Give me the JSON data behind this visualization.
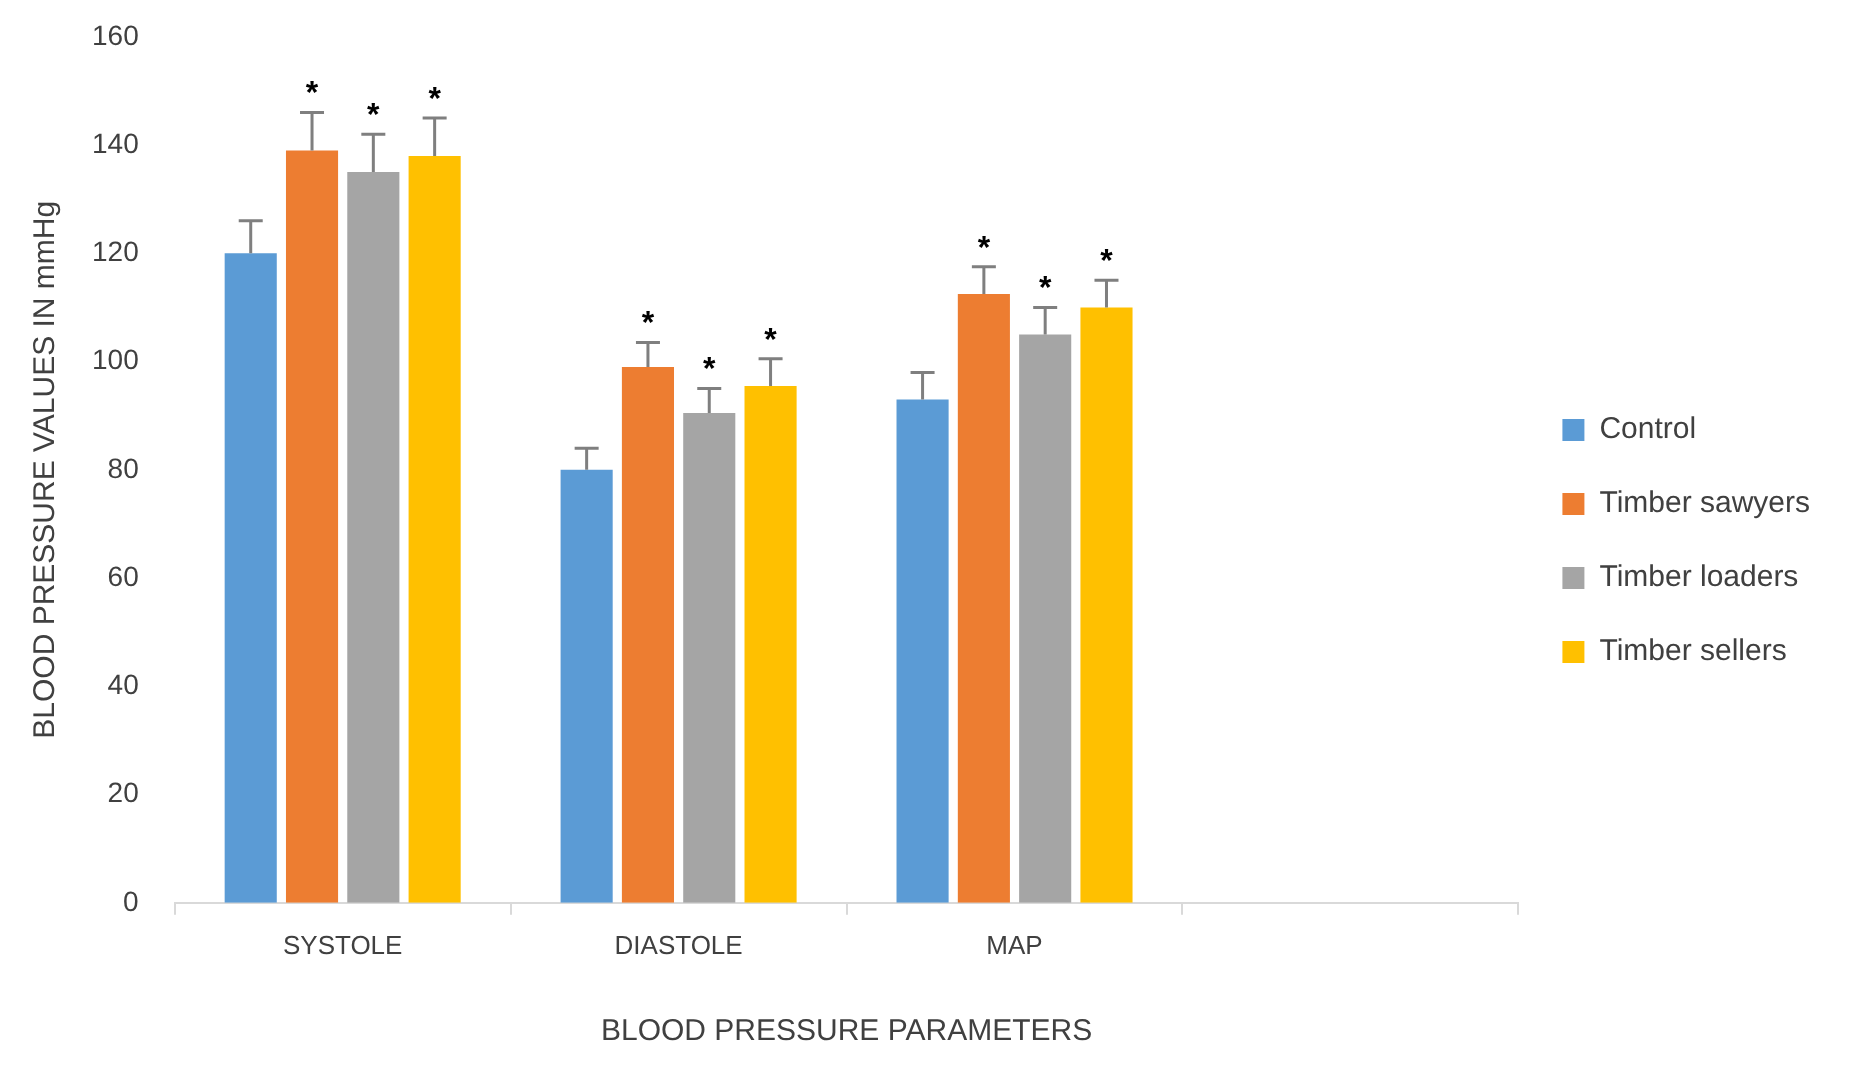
{
  "chart_data": {
    "type": "bar",
    "xlabel": "BLOOD PRESSURE PARAMETERS",
    "ylabel": "BLOOD PRESSURE VALUES IN mmHg",
    "categories": [
      "SYSTOLE",
      "DIASTOLE",
      "MAP",
      null
    ],
    "series": [
      {
        "name": "Control",
        "color": "#5b9bd5",
        "values": [
          120,
          80,
          93,
          null
        ],
        "errors": [
          6,
          4,
          5,
          null
        ]
      },
      {
        "name": "Timber sawyers",
        "color": "#ed7d31",
        "values": [
          139,
          99,
          112.5,
          null
        ],
        "errors": [
          7,
          4.5,
          5,
          null
        ]
      },
      {
        "name": "Timber loaders",
        "color": "#a5a5a5",
        "values": [
          135,
          90.5,
          105,
          null
        ],
        "errors": [
          7,
          4.5,
          5,
          null
        ]
      },
      {
        "name": "Timber sellers",
        "color": "#ffc000",
        "values": [
          138,
          95.5,
          110,
          null
        ],
        "errors": [
          7,
          5,
          5,
          null
        ]
      }
    ],
    "ylim": [
      0,
      160
    ],
    "yticks": [
      0,
      20,
      40,
      60,
      80,
      100,
      120,
      140,
      160
    ],
    "grid": false,
    "legend": "right",
    "annotations": [
      {
        "text": "*",
        "x": "SYSTOLE",
        "y": 139
      },
      {
        "text": "*",
        "x": "SYSTOLE",
        "y": 135
      },
      {
        "text": "*",
        "x": "SYSTOLE",
        "y": 138
      },
      {
        "text": "*",
        "x": "DIASTOLE",
        "y": 99
      },
      {
        "text": "*",
        "x": "DIASTOLE",
        "y": 90.5
      },
      {
        "text": "*",
        "x": "DIASTOLE",
        "y": 95.5
      },
      {
        "text": "*",
        "x": "MAP",
        "y": 112.5
      },
      {
        "text": "*",
        "x": "MAP",
        "y": 105
      },
      {
        "text": "*",
        "x": "MAP",
        "y": 110
      }
    ]
  }
}
